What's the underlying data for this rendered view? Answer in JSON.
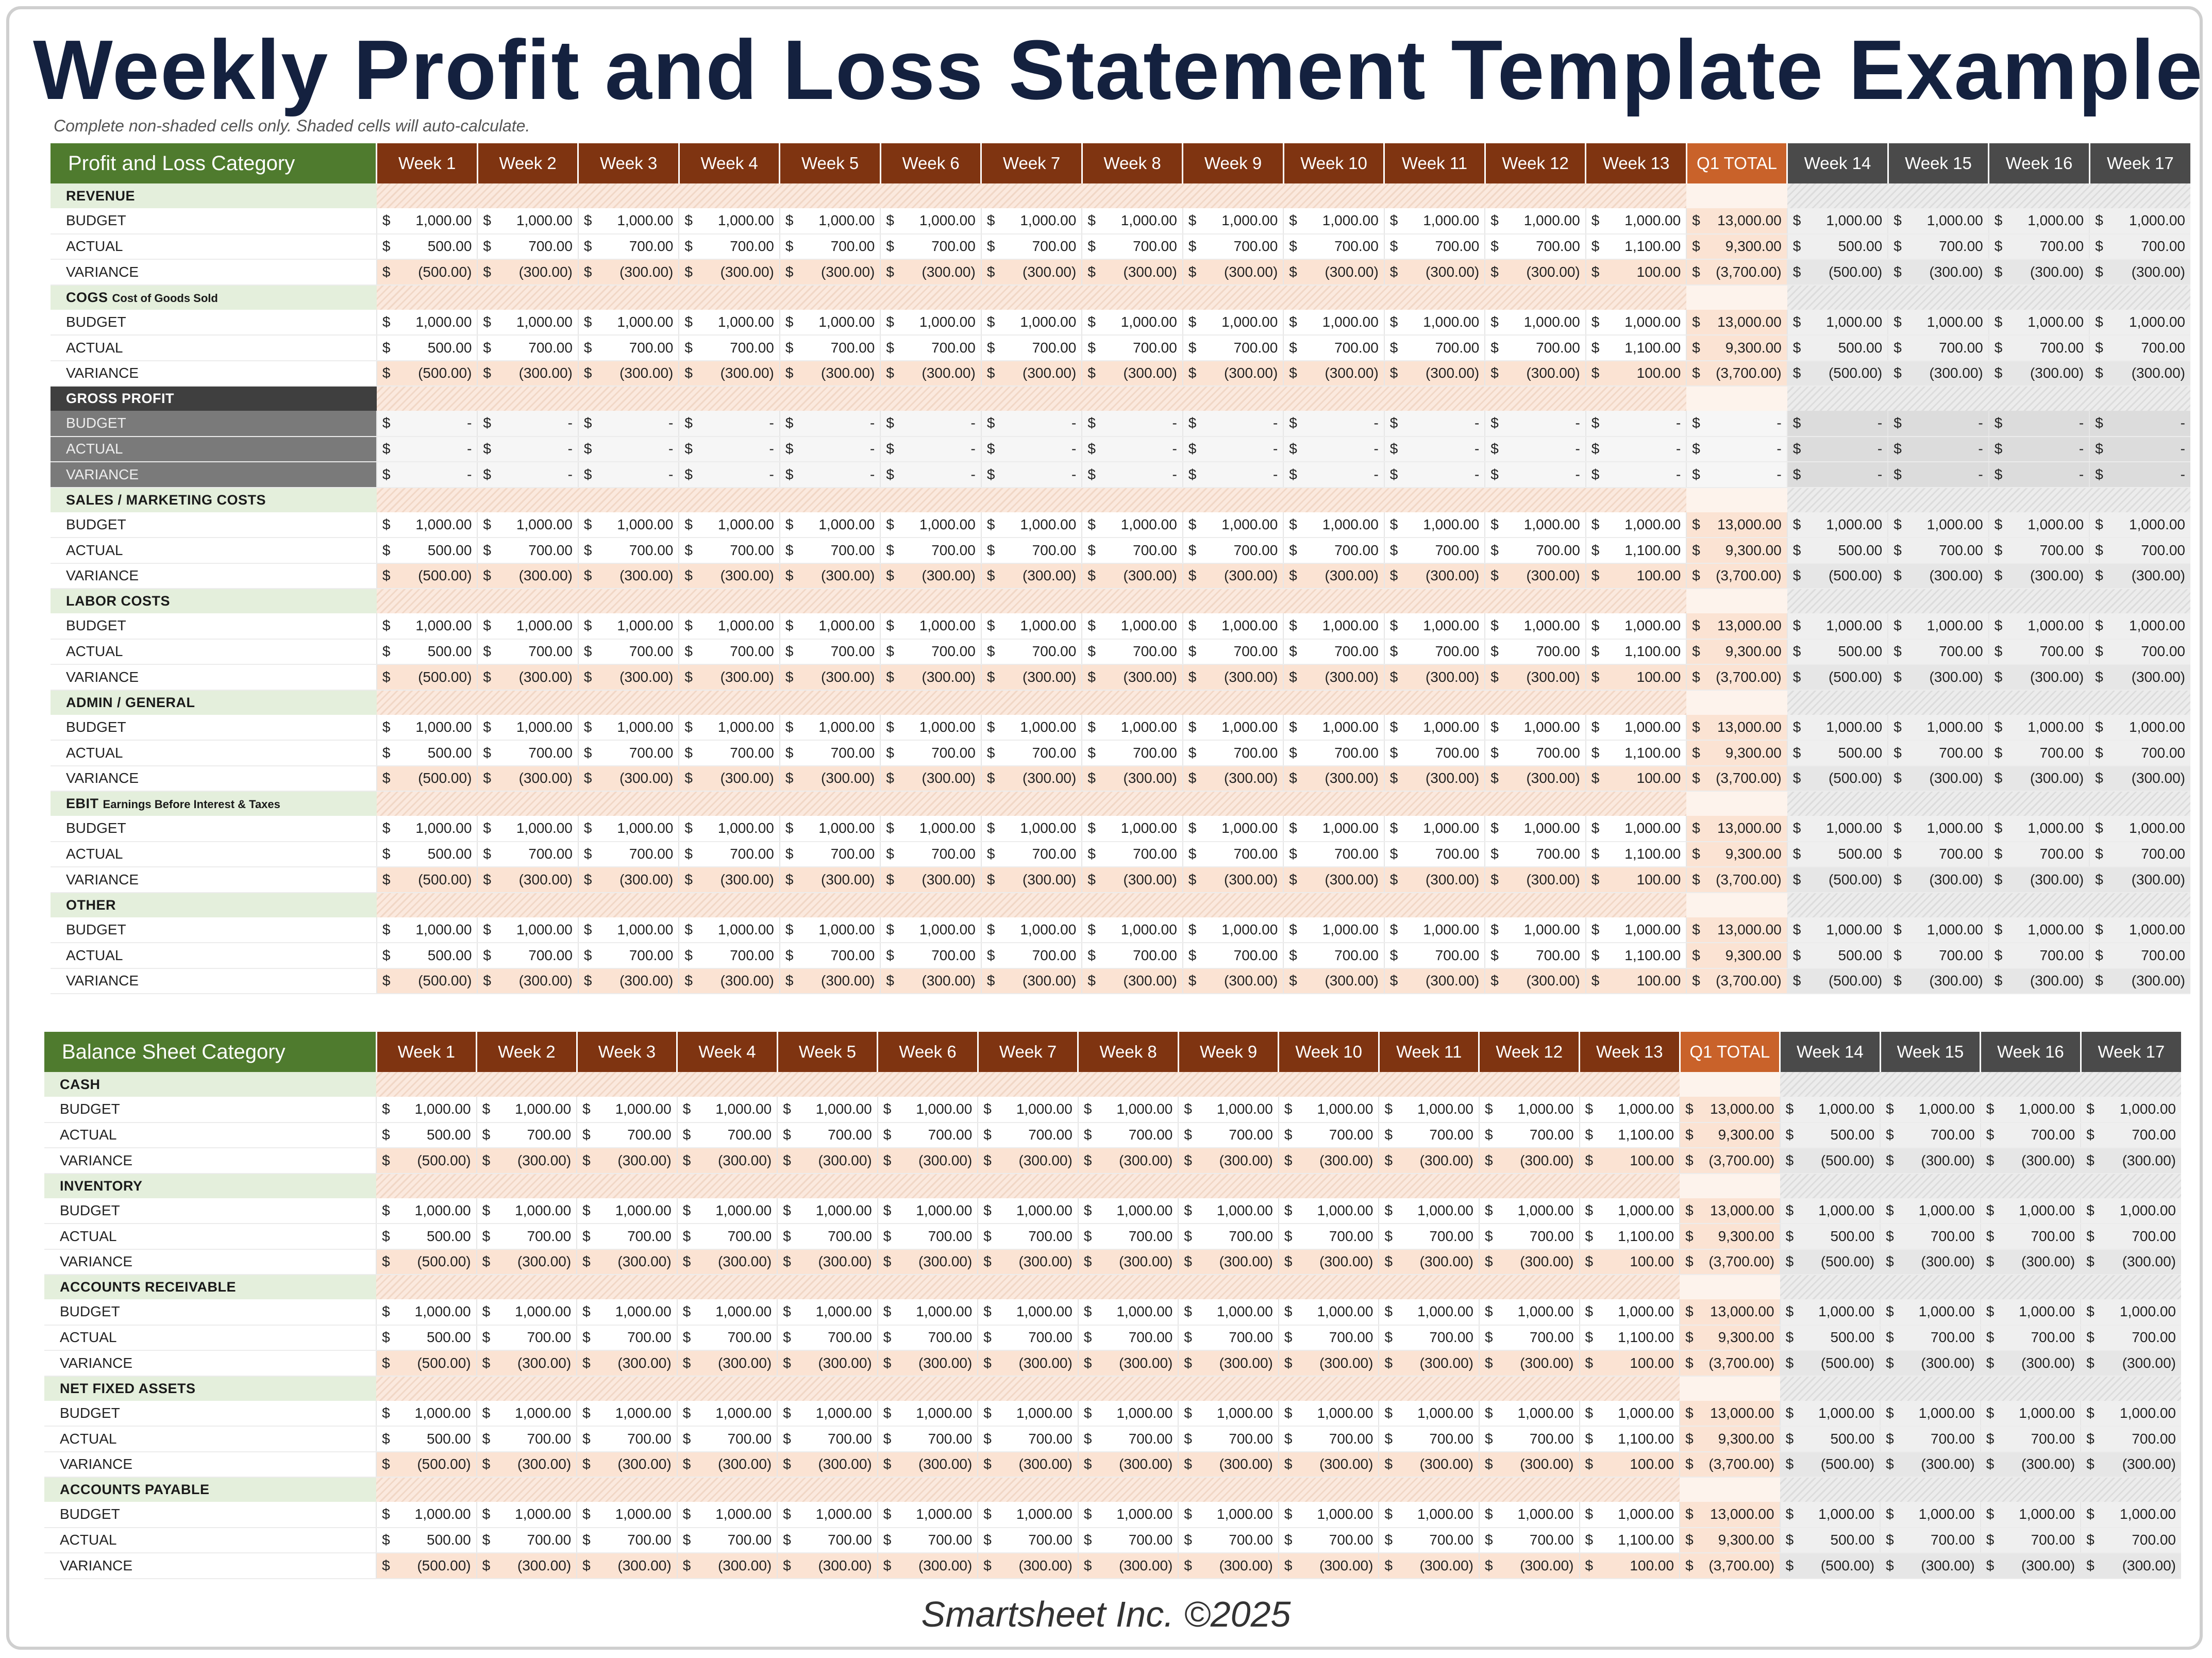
{
  "title": "Weekly Profit and Loss Statement Template Example",
  "subtitle": "Complete non-shaded cells only. Shaded cells will auto-calculate.",
  "footer": "Smartsheet Inc. ©2025",
  "colors": {
    "category_green": "#4f7b2e",
    "week_brown": "#7f3411",
    "q1_orange": "#c9622a",
    "ext_gray": "#4a4a4a",
    "shade_peach": "#fbe3d3",
    "section_green": "#e4efdc"
  },
  "currency_symbol": "$",
  "row_labels": {
    "budget": "BUDGET",
    "actual": "ACTUAL",
    "variance": "VARIANCE"
  },
  "week_headers": [
    "Week 1",
    "Week 2",
    "Week 3",
    "Week 4",
    "Week 5",
    "Week 6",
    "Week 7",
    "Week 8",
    "Week 9",
    "Week 10",
    "Week 11",
    "Week 12",
    "Week 13"
  ],
  "q1_header": "Q1 TOTAL",
  "ext_headers": [
    "Week 14",
    "Week 15",
    "Week 16",
    "Week 17"
  ],
  "standard_values": {
    "budget": [
      "1,000.00",
      "1,000.00",
      "1,000.00",
      "1,000.00",
      "1,000.00",
      "1,000.00",
      "1,000.00",
      "1,000.00",
      "1,000.00",
      "1,000.00",
      "1,000.00",
      "1,000.00",
      "1,000.00",
      "13,000.00",
      "1,000.00",
      "1,000.00",
      "1,000.00",
      "1,000.00"
    ],
    "actual": [
      "500.00",
      "700.00",
      "700.00",
      "700.00",
      "700.00",
      "700.00",
      "700.00",
      "700.00",
      "700.00",
      "700.00",
      "700.00",
      "700.00",
      "1,100.00",
      "9,300.00",
      "500.00",
      "700.00",
      "700.00",
      "700.00"
    ],
    "variance": [
      "(500.00)",
      "(300.00)",
      "(300.00)",
      "(300.00)",
      "(300.00)",
      "(300.00)",
      "(300.00)",
      "(300.00)",
      "(300.00)",
      "(300.00)",
      "(300.00)",
      "(300.00)",
      "100.00",
      "(3,700.00)",
      "(500.00)",
      "(300.00)",
      "(300.00)",
      "(300.00)"
    ]
  },
  "empty_value": "-",
  "pl_table": {
    "category_header": "Profit and Loss Category",
    "sections": [
      {
        "name": "REVENUE",
        "subname": ""
      },
      {
        "name": "COGS",
        "subname": "Cost of Goods Sold"
      },
      {
        "name": "GROSS PROFIT",
        "subname": "",
        "computed": true
      },
      {
        "name": "SALES / MARKETING COSTS",
        "subname": ""
      },
      {
        "name": "LABOR COSTS",
        "subname": ""
      },
      {
        "name": "ADMIN / GENERAL",
        "subname": ""
      },
      {
        "name": "EBIT",
        "subname": "Earnings Before Interest &  Taxes"
      },
      {
        "name": "OTHER",
        "subname": ""
      }
    ]
  },
  "bs_table": {
    "category_header": "Balance Sheet Category",
    "sections": [
      {
        "name": "CASH",
        "subname": ""
      },
      {
        "name": "INVENTORY",
        "subname": ""
      },
      {
        "name": "ACCOUNTS RECEIVABLE",
        "subname": ""
      },
      {
        "name": "NET FIXED ASSETS",
        "subname": ""
      },
      {
        "name": "ACCOUNTS PAYABLE",
        "subname": ""
      }
    ]
  }
}
